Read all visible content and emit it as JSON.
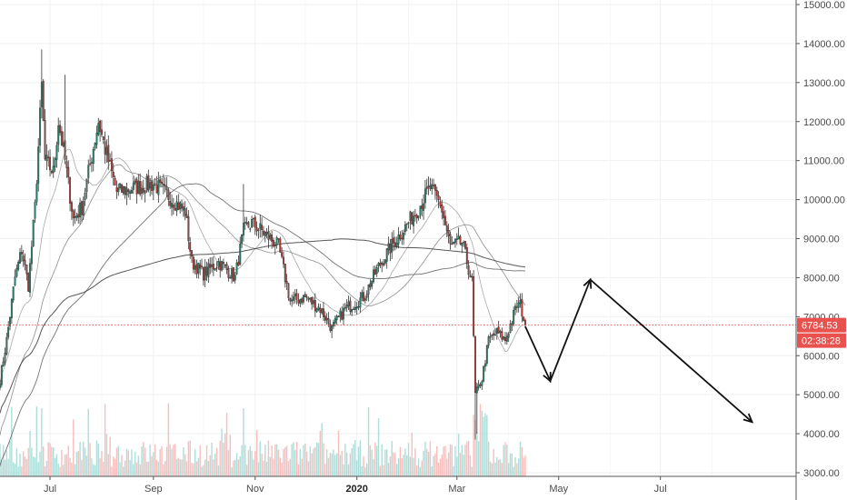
{
  "chart_data": {
    "type": "candlestick",
    "y_axis": {
      "position": "right",
      "ylim": [
        2800,
        15200
      ],
      "ticks": [
        "3000.00",
        "4000.00",
        "5000.00",
        "6000.00",
        "7000.00",
        "8000.00",
        "9000.00",
        "10000.00",
        "11000.00",
        "12000.00",
        "13000.00",
        "14000.00",
        "15000.00"
      ]
    },
    "x_axis": {
      "ticks": [
        "Jul",
        "Sep",
        "Nov",
        "2020",
        "Mar",
        "May",
        "Jul"
      ],
      "bold_ticks": [
        "2020"
      ]
    },
    "current_price": {
      "label": "6784.53",
      "value": 6784.53,
      "countdown": "02:38:28",
      "badge_color": "#e8514d"
    },
    "candles": {
      "start_date": "2019-06-01",
      "interval": "1 day",
      "close_anchors": [
        [
          "2019-06-01",
          5400
        ],
        [
          "2019-06-05",
          6400
        ],
        [
          "2019-06-10",
          8000
        ],
        [
          "2019-06-14",
          8700
        ],
        [
          "2019-06-18",
          7800
        ],
        [
          "2019-06-22",
          9800
        ],
        [
          "2019-06-26",
          12900
        ],
        [
          "2019-06-28",
          11000
        ],
        [
          "2019-07-03",
          10700
        ],
        [
          "2019-07-06",
          12000
        ],
        [
          "2019-07-10",
          11000
        ],
        [
          "2019-07-15",
          9500
        ],
        [
          "2019-07-20",
          9800
        ],
        [
          "2019-07-30",
          12000
        ],
        [
          "2019-08-03",
          11300
        ],
        [
          "2019-08-10",
          10200
        ],
        [
          "2019-08-20",
          10300
        ],
        [
          "2019-09-01",
          10400
        ],
        [
          "2019-09-10",
          10100
        ],
        [
          "2019-09-20",
          9700
        ],
        [
          "2019-09-24",
          8400
        ],
        [
          "2019-10-01",
          8100
        ],
        [
          "2019-10-10",
          8400
        ],
        [
          "2019-10-20",
          8000
        ],
        [
          "2019-10-25",
          9200
        ],
        [
          "2019-10-30",
          9400
        ],
        [
          "2019-11-05",
          9200
        ],
        [
          "2019-11-15",
          8800
        ],
        [
          "2019-11-22",
          7400
        ],
        [
          "2019-12-01",
          7500
        ],
        [
          "2019-12-10",
          7200
        ],
        [
          "2019-12-17",
          6700
        ],
        [
          "2019-12-25",
          7200
        ],
        [
          "2020-01-05",
          7500
        ],
        [
          "2020-01-13",
          8200
        ],
        [
          "2020-01-20",
          8700
        ],
        [
          "2020-01-30",
          9300
        ],
        [
          "2020-02-07",
          9800
        ],
        [
          "2020-02-14",
          10300
        ],
        [
          "2020-02-20",
          9900
        ],
        [
          "2020-02-26",
          8800
        ],
        [
          "2020-03-04",
          8900
        ],
        [
          "2020-03-10",
          7900
        ],
        [
          "2020-03-12",
          5000
        ],
        [
          "2020-03-16",
          5400
        ],
        [
          "2020-03-20",
          6400
        ],
        [
          "2020-03-25",
          6600
        ],
        [
          "2020-03-30",
          6400
        ],
        [
          "2020-04-06",
          7300
        ],
        [
          "2020-04-08",
          7300
        ],
        [
          "2020-04-11",
          6784.53
        ]
      ]
    },
    "moving_averages": [
      {
        "color": "#9a9a9a"
      },
      {
        "color": "#7a7a7a"
      },
      {
        "color": "#5a5a5a"
      },
      {
        "color": "#3a3a3a"
      }
    ],
    "projection_path": [
      [
        "2020-04-11",
        6750
      ],
      [
        "2020-04-26",
        5350
      ],
      [
        "2020-05-20",
        7950
      ],
      [
        "2020-08-25",
        4300
      ]
    ],
    "colors": {
      "up": "#26a69a",
      "down": "#ef5350",
      "candle_body_up": "#2e7d6b",
      "candle_body_down": "#b03a35",
      "grid": "#eef0f2",
      "axis_line": "#555555"
    }
  }
}
